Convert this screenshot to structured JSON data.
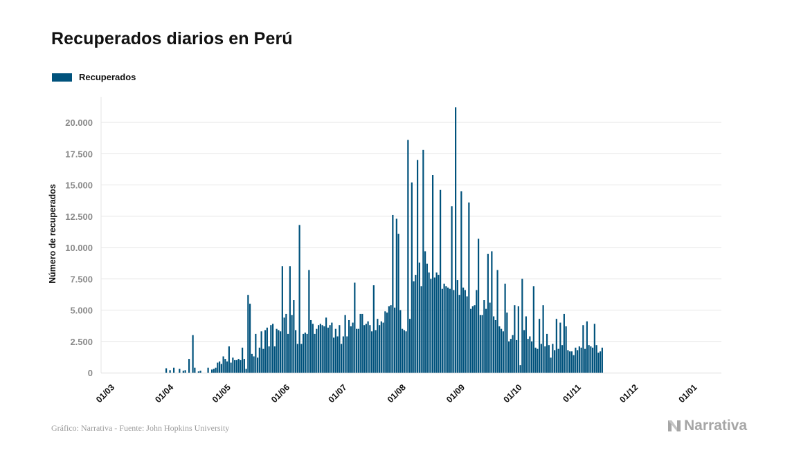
{
  "chart_data": {
    "type": "bar",
    "title": "Recuperados diarios en Perú",
    "ylabel": "Número de recuperados",
    "xlabel": "",
    "ylim": [
      0,
      22000
    ],
    "yticks": [
      0,
      2500,
      5000,
      7500,
      10000,
      12500,
      15000,
      17500,
      20000
    ],
    "ytick_labels": [
      "0",
      "2.500",
      "5.000",
      "7.500",
      "10.000",
      "12.500",
      "15.000",
      "17.500",
      "20.000"
    ],
    "xtick_labels": [
      "01/03",
      "01/04",
      "01/05",
      "01/06",
      "01/07",
      "01/08",
      "01/09",
      "01/10",
      "01/11",
      "01/12",
      "01/01"
    ],
    "x_start": "2020-03-01",
    "grid": "horizontal",
    "legend_position": "top-left",
    "color": "#00527c",
    "series": [
      {
        "name": "Recuperados",
        "values": [
          0,
          0,
          0,
          0,
          0,
          0,
          0,
          0,
          0,
          0,
          0,
          0,
          0,
          0,
          0,
          0,
          0,
          0,
          0,
          0,
          0,
          0,
          0,
          0,
          0,
          0,
          0,
          0,
          0,
          0,
          0,
          0,
          350,
          0,
          200,
          0,
          400,
          0,
          0,
          300,
          0,
          150,
          200,
          0,
          1100,
          0,
          3000,
          400,
          0,
          100,
          150,
          0,
          0,
          0,
          400,
          0,
          250,
          300,
          400,
          800,
          900,
          700,
          1300,
          1100,
          900,
          2100,
          800,
          1200,
          1000,
          1000,
          1100,
          1000,
          2000,
          1100,
          300,
          6200,
          5500,
          1500,
          1300,
          3100,
          1200,
          2000,
          3300,
          1900,
          3400,
          3600,
          2100,
          3800,
          3900,
          2100,
          3500,
          3400,
          3300,
          8500,
          4400,
          4700,
          3100,
          8500,
          4600,
          5800,
          3400,
          2300,
          11800,
          2300,
          3100,
          3200,
          3100,
          8200,
          4200,
          3900,
          3100,
          3500,
          3800,
          3900,
          3800,
          3700,
          4400,
          3600,
          3800,
          4000,
          2800,
          3500,
          2900,
          3800,
          2300,
          2900,
          4600,
          2900,
          4200,
          3700,
          4000,
          7200,
          3500,
          3500,
          4700,
          4700,
          3800,
          3900,
          4100,
          3800,
          3300,
          7000,
          3400,
          4300,
          3800,
          4100,
          4000,
          4900,
          4800,
          5300,
          5400,
          12600,
          5200,
          12300,
          11100,
          5000,
          3500,
          3400,
          3300,
          18600,
          4300,
          15200,
          7300,
          7800,
          17000,
          8800,
          6900,
          17800,
          9700,
          8700,
          8000,
          7500,
          15800,
          7600,
          8000,
          7800,
          14600,
          6700,
          7100,
          6900,
          6800,
          6700,
          13300,
          6600,
          21200,
          7400,
          6200,
          14500,
          6800,
          6600,
          6100,
          13600,
          5100,
          5300,
          5400,
          6600,
          10700,
          4600,
          4600,
          5800,
          5100,
          9500,
          5600,
          9700,
          4500,
          4200,
          8200,
          3700,
          3500,
          3300,
          7100,
          4800,
          2500,
          2700,
          3000,
          5400,
          2600,
          5300,
          600,
          7500,
          3400,
          4500,
          2700,
          2900,
          2500,
          6900,
          2000,
          1900,
          4300,
          2300,
          5400,
          2100,
          3100,
          2200,
          1200,
          2300,
          1800,
          4300,
          1900,
          4000,
          2200,
          4700,
          3700,
          1800,
          1700,
          1700,
          1400,
          2000,
          1800,
          2100,
          2000,
          3800,
          1900,
          4100,
          2200,
          2100,
          2000,
          3900,
          2200,
          1600,
          1700,
          2000
        ]
      }
    ]
  },
  "title": "Recuperados diarios en Perú",
  "legend": {
    "label": "Recuperados",
    "color": "#00527c"
  },
  "source": "Gráfico: Narrativa - Fuente: John Hopkins University",
  "logo": {
    "text": "Narrativa",
    "icon": "narrativa-n-logo"
  }
}
